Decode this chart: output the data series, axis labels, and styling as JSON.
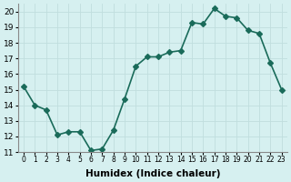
{
  "x": [
    0,
    1,
    2,
    3,
    4,
    5,
    6,
    7,
    8,
    9,
    10,
    11,
    12,
    13,
    14,
    15,
    16,
    17,
    18,
    19,
    20,
    21,
    22,
    23
  ],
  "y": [
    15.2,
    14.0,
    13.7,
    12.1,
    12.3,
    12.3,
    11.1,
    11.2,
    12.4,
    14.4,
    16.5,
    17.1,
    17.1,
    17.4,
    17.5,
    19.3,
    19.2,
    20.2,
    19.7,
    19.6,
    18.8,
    18.6,
    16.7,
    15.0
  ],
  "line_color": "#1a6b5a",
  "marker": "D",
  "marker_size": 3,
  "bg_color": "#d6f0f0",
  "grid_color": "#c0dede",
  "xlabel": "Humidex (Indice chaleur)",
  "xlim": [
    -0.5,
    23.5
  ],
  "ylim": [
    11,
    20.5
  ],
  "yticks": [
    11,
    12,
    13,
    14,
    15,
    16,
    17,
    18,
    19,
    20
  ],
  "xticks": [
    0,
    1,
    2,
    3,
    4,
    5,
    6,
    7,
    8,
    9,
    10,
    11,
    12,
    13,
    14,
    15,
    16,
    17,
    18,
    19,
    20,
    21,
    22,
    23
  ],
  "xtick_labels": [
    "0",
    "1",
    "2",
    "3",
    "4",
    "5",
    "6",
    "7",
    "8",
    "9",
    "10",
    "11",
    "12",
    "13",
    "14",
    "15",
    "16",
    "17",
    "18",
    "19",
    "20",
    "21",
    "22",
    "23"
  ],
  "line_width": 1.2
}
